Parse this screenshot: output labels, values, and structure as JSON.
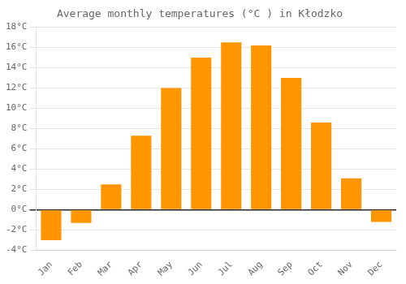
{
  "chart_data": {
    "type": "bar",
    "title": "Average monthly temperatures (°C ) in Kłodzko",
    "categories": [
      "Jan",
      "Feb",
      "Mar",
      "Apr",
      "May",
      "Jun",
      "Jul",
      "Aug",
      "Sep",
      "Oct",
      "Nov",
      "Dec"
    ],
    "values": [
      -3.0,
      -1.3,
      2.5,
      7.3,
      12.0,
      15.0,
      16.5,
      16.2,
      13.0,
      8.6,
      3.1,
      -1.2
    ],
    "color": "#FF9500",
    "ylim": [
      -4,
      18
    ],
    "yticks": [
      {
        "value": -4,
        "label": "-4°C"
      },
      {
        "value": -2,
        "label": "-2°C"
      },
      {
        "value": 0,
        "label": "0°C"
      },
      {
        "value": 2,
        "label": "2°C"
      },
      {
        "value": 4,
        "label": "4°C"
      },
      {
        "value": 6,
        "label": "6°C"
      },
      {
        "value": 8,
        "label": "8°C"
      },
      {
        "value": 10,
        "label": "10°C"
      },
      {
        "value": 12,
        "label": "12°C"
      },
      {
        "value": 14,
        "label": "14°C"
      },
      {
        "value": 16,
        "label": "16°C"
      },
      {
        "value": 18,
        "label": "18°C"
      }
    ],
    "grid": true
  }
}
